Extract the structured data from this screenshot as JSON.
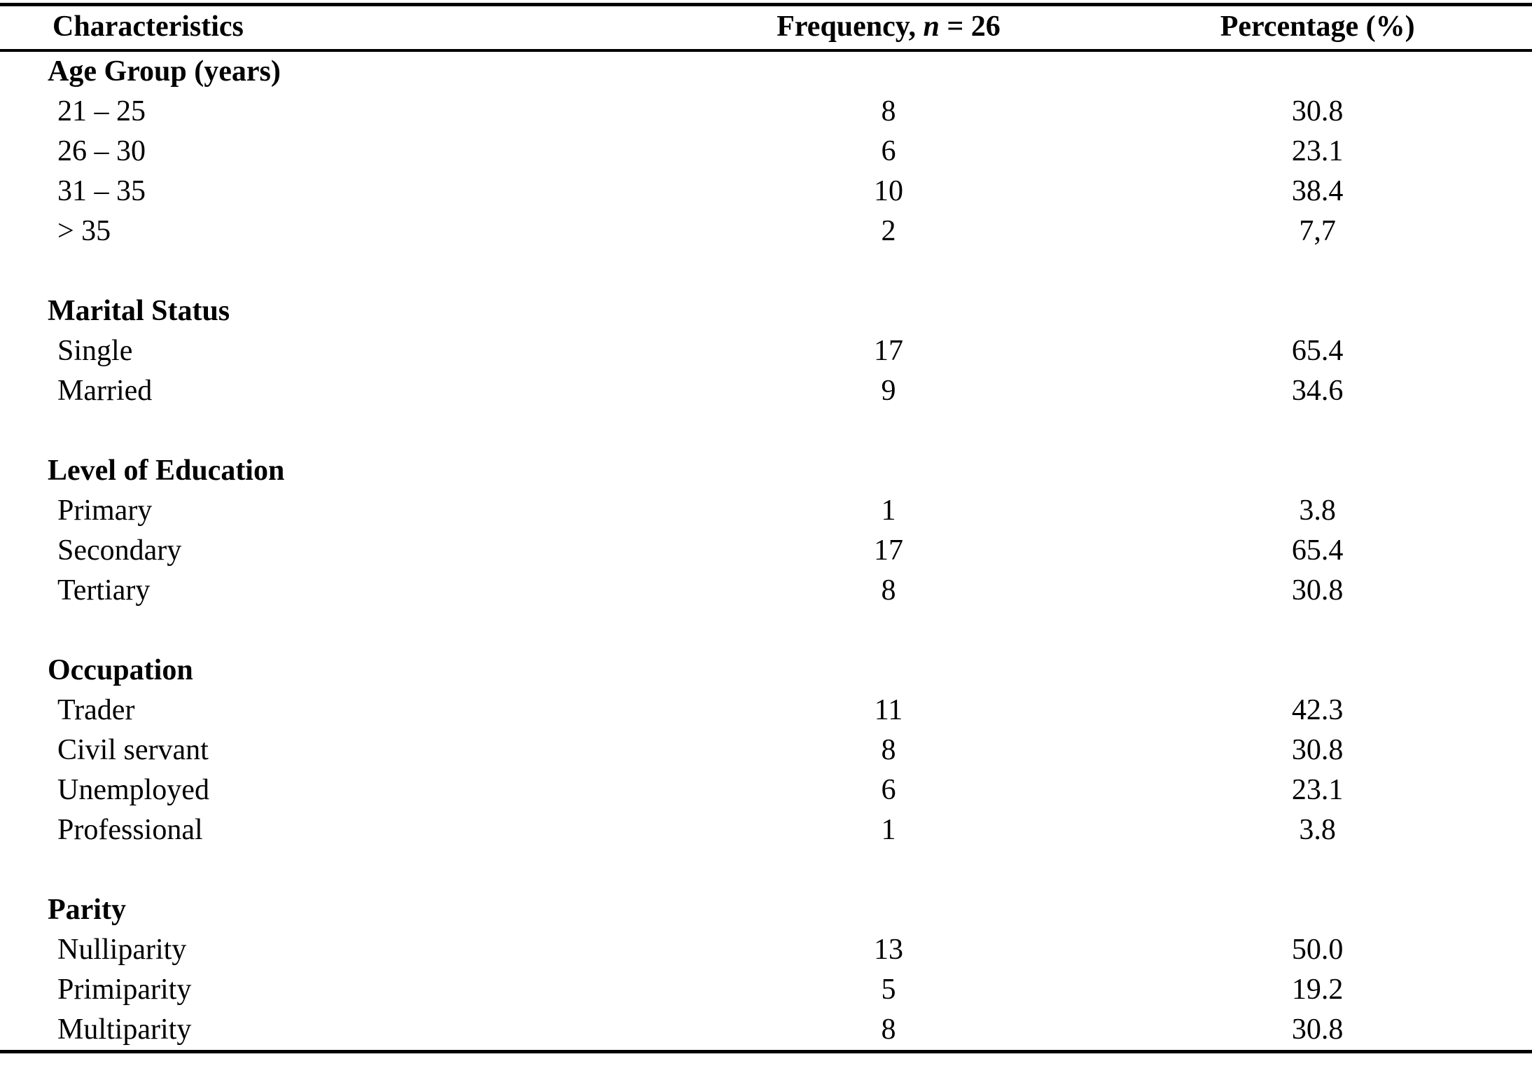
{
  "page": {
    "background_color": "#ffffff",
    "text_color": "#000000",
    "rule_color": "#000000"
  },
  "table": {
    "header": {
      "characteristics": "Characteristics",
      "frequency_prefix": "Frequency, ",
      "frequency_n": "n",
      "frequency_suffix": " = 26",
      "percentage": "Percentage (%)"
    },
    "sections": [
      {
        "title": "Age Group (years)",
        "rows": [
          {
            "label": "21 – 25",
            "frequency": "8",
            "percentage": "30.8"
          },
          {
            "label": "26 – 30",
            "frequency": "6",
            "percentage": "23.1"
          },
          {
            "label": "31 – 35",
            "frequency": "10",
            "percentage": "38.4"
          },
          {
            "label": "> 35",
            "frequency": "2",
            "percentage": "7,7"
          }
        ]
      },
      {
        "title": "Marital Status",
        "rows": [
          {
            "label": "Single",
            "frequency": "17",
            "percentage": "65.4"
          },
          {
            "label": "Married",
            "frequency": "9",
            "percentage": "34.6"
          }
        ]
      },
      {
        "title": "Level of Education",
        "rows": [
          {
            "label": "Primary",
            "frequency": "1",
            "percentage": "3.8"
          },
          {
            "label": "Secondary",
            "frequency": "17",
            "percentage": "65.4"
          },
          {
            "label": "Tertiary",
            "frequency": "8",
            "percentage": "30.8"
          }
        ]
      },
      {
        "title": "Occupation",
        "rows": [
          {
            "label": "Trader",
            "frequency": "11",
            "percentage": "42.3"
          },
          {
            "label": "Civil servant",
            "frequency": "8",
            "percentage": "30.8"
          },
          {
            "label": "Unemployed",
            "frequency": "6",
            "percentage": "23.1"
          },
          {
            "label": "Professional",
            "frequency": "1",
            "percentage": "3.8"
          }
        ]
      },
      {
        "title": "Parity",
        "rows": [
          {
            "label": "Nulliparity",
            "frequency": "13",
            "percentage": "50.0"
          },
          {
            "label": "Primiparity",
            "frequency": "5",
            "percentage": "19.2"
          },
          {
            "label": "Multiparity",
            "frequency": "8",
            "percentage": "30.8"
          }
        ]
      }
    ]
  },
  "chart_data": {
    "type": "table",
    "columns": [
      "Characteristics",
      "Frequency, n = 26",
      "Percentage (%)"
    ],
    "n_total": 26,
    "rows": [
      [
        "Age Group (years): 21 – 25",
        8,
        30.8
      ],
      [
        "Age Group (years): 26 – 30",
        6,
        23.1
      ],
      [
        "Age Group (years): 31 – 35",
        10,
        38.4
      ],
      [
        "Age Group (years): > 35",
        2,
        7.7
      ],
      [
        "Marital Status: Single",
        17,
        65.4
      ],
      [
        "Marital Status: Married",
        9,
        34.6
      ],
      [
        "Level of Education: Primary",
        1,
        3.8
      ],
      [
        "Level of Education: Secondary",
        17,
        65.4
      ],
      [
        "Level of Education: Tertiary",
        8,
        30.8
      ],
      [
        "Occupation: Trader",
        11,
        42.3
      ],
      [
        "Occupation: Civil servant",
        8,
        30.8
      ],
      [
        "Occupation: Unemployed",
        6,
        23.1
      ],
      [
        "Occupation: Professional",
        1,
        3.8
      ],
      [
        "Parity: Nulliparity",
        13,
        50.0
      ],
      [
        "Parity: Primiparity",
        5,
        19.2
      ],
      [
        "Parity: Multiparity",
        8,
        30.8
      ]
    ]
  }
}
